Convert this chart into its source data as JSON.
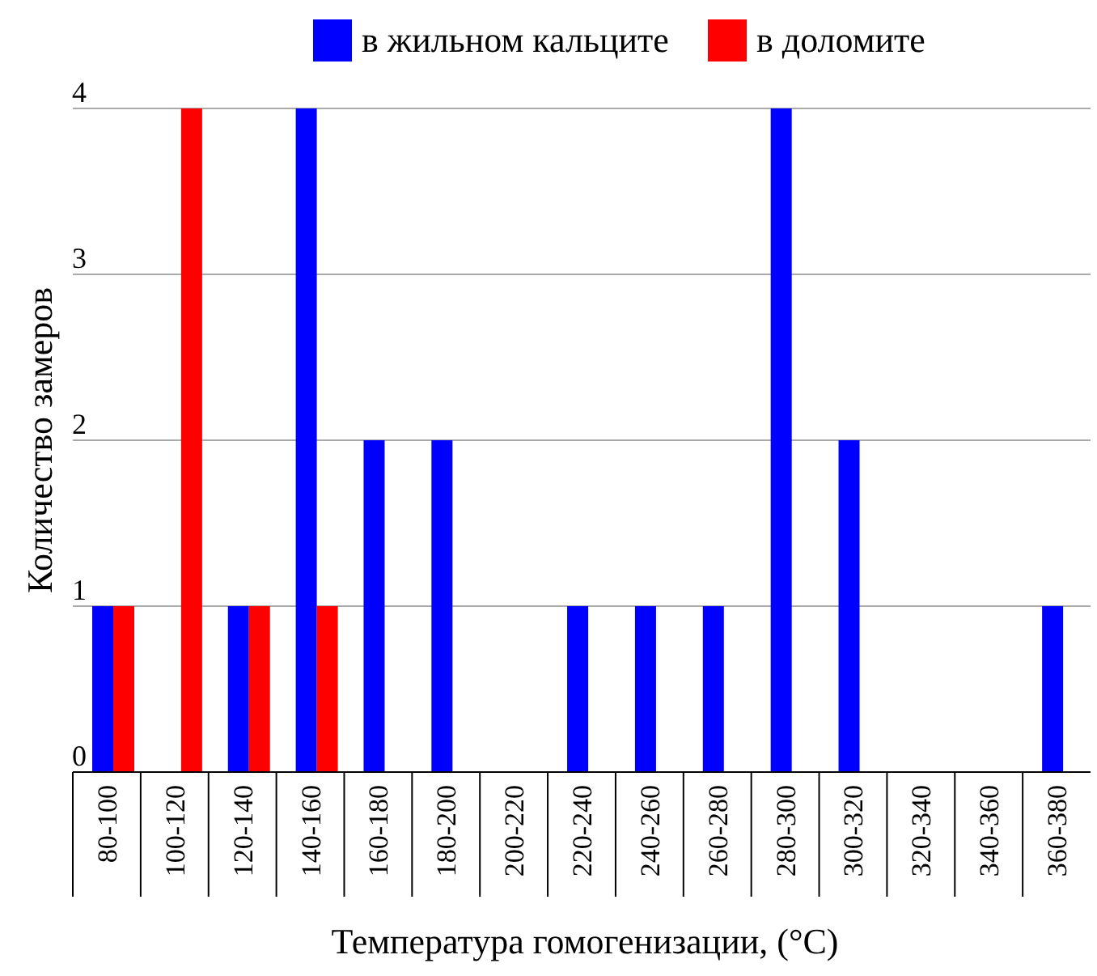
{
  "chart_data": {
    "type": "bar",
    "xlabel": "Температура гомогенизации, (°C)",
    "ylabel": "Количество замеров",
    "categories": [
      "80-100",
      "100-120",
      "120-140",
      "140-160",
      "160-180",
      "180-200",
      "200-220",
      "220-240",
      "240-260",
      "260-280",
      "280-300",
      "300-320",
      "320-340",
      "340-360",
      "360-380"
    ],
    "series": [
      {
        "name": "в жильном кальците",
        "color": "#0000ff",
        "values": [
          1,
          0,
          1,
          4,
          2,
          2,
          0,
          1,
          1,
          1,
          4,
          2,
          0,
          0,
          1
        ]
      },
      {
        "name": "в доломите",
        "color": "#ff0000",
        "values": [
          1,
          4,
          1,
          1,
          0,
          0,
          0,
          0,
          0,
          0,
          0,
          0,
          0,
          0,
          0
        ]
      }
    ],
    "ylim": [
      0,
      4
    ],
    "yticks": [
      0,
      1,
      2,
      3,
      4
    ],
    "grid": "y",
    "legend": "top"
  }
}
